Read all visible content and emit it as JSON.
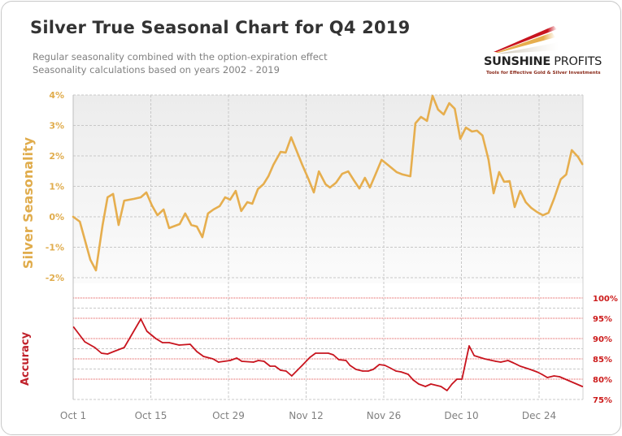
{
  "header": {
    "title": "Silver True Seasonal Chart for Q4 2019",
    "subtitle_line1": "Regular seasonality combined with the option-expiration effect",
    "subtitle_line2": "Seasonality calculations based on years 2002 - 2019"
  },
  "logo": {
    "name_bold": "SUNSHINE",
    "name_light": " PROFITS",
    "tagline": "Tools for Effective Gold & Silver Investments",
    "icon": "sun-rays-logo-icon"
  },
  "colors": {
    "seasonality_line": "#e6ae4e",
    "accuracy_line": "#c8141e",
    "grid": "#c8c8c8",
    "accuracy_grid": "#e05050"
  },
  "chart_data": [
    {
      "type": "line",
      "title": "Silver True Seasonal Chart for Q4 2019",
      "ylabel": "Silver Seasonality",
      "xlabel": "",
      "x_unit": "days since Oct 1",
      "x_ticks": [
        {
          "day": 0,
          "label": "Oct 1"
        },
        {
          "day": 14,
          "label": "Oct 15"
        },
        {
          "day": 28,
          "label": "Oct 29"
        },
        {
          "day": 42,
          "label": "Nov 12"
        },
        {
          "day": 56,
          "label": "Nov 26"
        },
        {
          "day": 70,
          "label": "Dec 10"
        },
        {
          "day": 84,
          "label": "Dec 24"
        }
      ],
      "xlim": [
        0,
        92
      ],
      "ylim": [
        -2,
        4
      ],
      "y_ticks": [
        {
          "value": 4,
          "label": "4%"
        },
        {
          "value": 3,
          "label": "3%"
        },
        {
          "value": 2,
          "label": "2%"
        },
        {
          "value": 1,
          "label": "1%"
        },
        {
          "value": 0,
          "label": "0%"
        },
        {
          "value": -1,
          "label": "-1%"
        },
        {
          "value": -2,
          "label": "-2%"
        }
      ],
      "grid": true,
      "series": [
        {
          "name": "Silver Seasonality",
          "x": [
            0,
            1.2,
            3.1,
            4.1,
            5.3,
            6.2,
            7.2,
            8.2,
            9.2,
            11,
            12.2,
            13.2,
            14.2,
            15.2,
            16.3,
            17.3,
            19.2,
            20.2,
            21.3,
            22.3,
            23.3,
            24.3,
            25.3,
            26.4,
            27.4,
            28.3,
            29.3,
            30.3,
            31.4,
            32.3,
            33.3,
            34.3,
            35.2,
            36.1,
            37.4,
            38.3,
            39.3,
            40.3,
            41.3,
            42.4,
            43.4,
            44.3,
            45.5,
            46.3,
            47.4,
            48.5,
            49.6,
            50.6,
            51.6,
            52.6,
            53.5,
            54.5,
            55.6,
            56.7,
            58.3,
            59.4,
            60.8,
            61.7,
            62.7,
            63.8,
            64.8,
            65.8,
            66.8,
            67.8,
            68.8,
            69.8,
            70.8,
            71.9,
            72.8,
            73.8,
            74.9,
            75.8,
            76.8,
            77.7,
            78.7,
            79.6,
            80.6,
            81.6,
            82.6,
            83.6,
            84.7,
            85.7,
            86.7,
            87.9,
            88.9,
            89.9,
            91.0,
            91.8
          ],
          "values": [
            0.0,
            -0.16,
            -1.41,
            -1.76,
            -0.27,
            0.64,
            0.75,
            -0.27,
            0.53,
            0.59,
            0.64,
            0.8,
            0.37,
            0.05,
            0.24,
            -0.37,
            -0.24,
            0.11,
            -0.27,
            -0.32,
            -0.67,
            0.11,
            0.24,
            0.35,
            0.64,
            0.56,
            0.85,
            0.19,
            0.48,
            0.43,
            0.91,
            1.07,
            1.33,
            1.71,
            2.13,
            2.11,
            2.61,
            2.16,
            1.71,
            1.25,
            0.8,
            1.49,
            1.07,
            0.96,
            1.12,
            1.41,
            1.49,
            1.2,
            0.93,
            1.28,
            0.96,
            1.39,
            1.87,
            1.71,
            1.47,
            1.39,
            1.33,
            3.07,
            3.28,
            3.15,
            3.97,
            3.52,
            3.36,
            3.73,
            3.55,
            2.56,
            2.93,
            2.8,
            2.83,
            2.67,
            1.87,
            0.77,
            1.47,
            1.15,
            1.17,
            0.32,
            0.85,
            0.48,
            0.29,
            0.16,
            0.05,
            0.13,
            0.59,
            1.23,
            1.39,
            2.19,
            1.97,
            1.73
          ]
        }
      ]
    },
    {
      "type": "line",
      "title": "",
      "ylabel": "Accuracy",
      "xlabel": "",
      "x_unit": "days since Oct 1",
      "xlim": [
        0,
        92
      ],
      "ylim": [
        75,
        100
      ],
      "y_ticks": [
        {
          "value": 100,
          "label": "100%"
        },
        {
          "value": 95,
          "label": "95%"
        },
        {
          "value": 90,
          "label": "90%"
        },
        {
          "value": 85,
          "label": "85%"
        },
        {
          "value": 80,
          "label": "80%"
        },
        {
          "value": 75,
          "label": "75%"
        }
      ],
      "grid": true,
      "series": [
        {
          "name": "Accuracy",
          "x": [
            0.1,
            2.1,
            3.9,
            5.1,
            6.2,
            7.3,
            9.2,
            12.2,
            13.3,
            14.9,
            16.1,
            17.3,
            19.1,
            21.1,
            22.3,
            23.5,
            25.2,
            26.2,
            28.3,
            29.5,
            30.4,
            32.5,
            33.4,
            34.4,
            35.5,
            36.4,
            37.4,
            38.4,
            39.4,
            41.3,
            42.7,
            43.7,
            46.0,
            46.9,
            47.9,
            49.2,
            49.9,
            51.0,
            52.2,
            53.2,
            54.1,
            55.2,
            56.2,
            57.1,
            58.2,
            59.1,
            60.4,
            61.3,
            62.3,
            63.5,
            64.5,
            66.3,
            67.4,
            68.3,
            69.2,
            70.1,
            71.4,
            72.3,
            74.2,
            76.2,
            77.1,
            78.4,
            79.4,
            80.6,
            82.4,
            83.6,
            84.5,
            85.5,
            86.7,
            87.7,
            91.8
          ],
          "values": [
            92.8,
            89.2,
            87.8,
            86.4,
            86.2,
            86.8,
            87.8,
            94.8,
            91.8,
            90.0,
            89.0,
            89.0,
            88.4,
            88.6,
            86.8,
            85.6,
            85.0,
            84.2,
            84.6,
            85.2,
            84.4,
            84.2,
            84.6,
            84.4,
            83.2,
            83.2,
            82.2,
            82.0,
            80.8,
            83.4,
            85.4,
            86.4,
            86.4,
            86.0,
            84.8,
            84.6,
            83.4,
            82.4,
            82.0,
            82.0,
            82.4,
            83.6,
            83.4,
            82.8,
            82.0,
            81.8,
            81.2,
            79.8,
            78.8,
            78.2,
            78.8,
            78.2,
            77.2,
            78.8,
            80.0,
            80.0,
            88.2,
            85.8,
            85.0,
            84.4,
            84.2,
            84.6,
            84.0,
            83.2,
            82.4,
            81.8,
            81.2,
            80.4,
            80.8,
            80.6,
            78.2
          ]
        }
      ]
    }
  ]
}
